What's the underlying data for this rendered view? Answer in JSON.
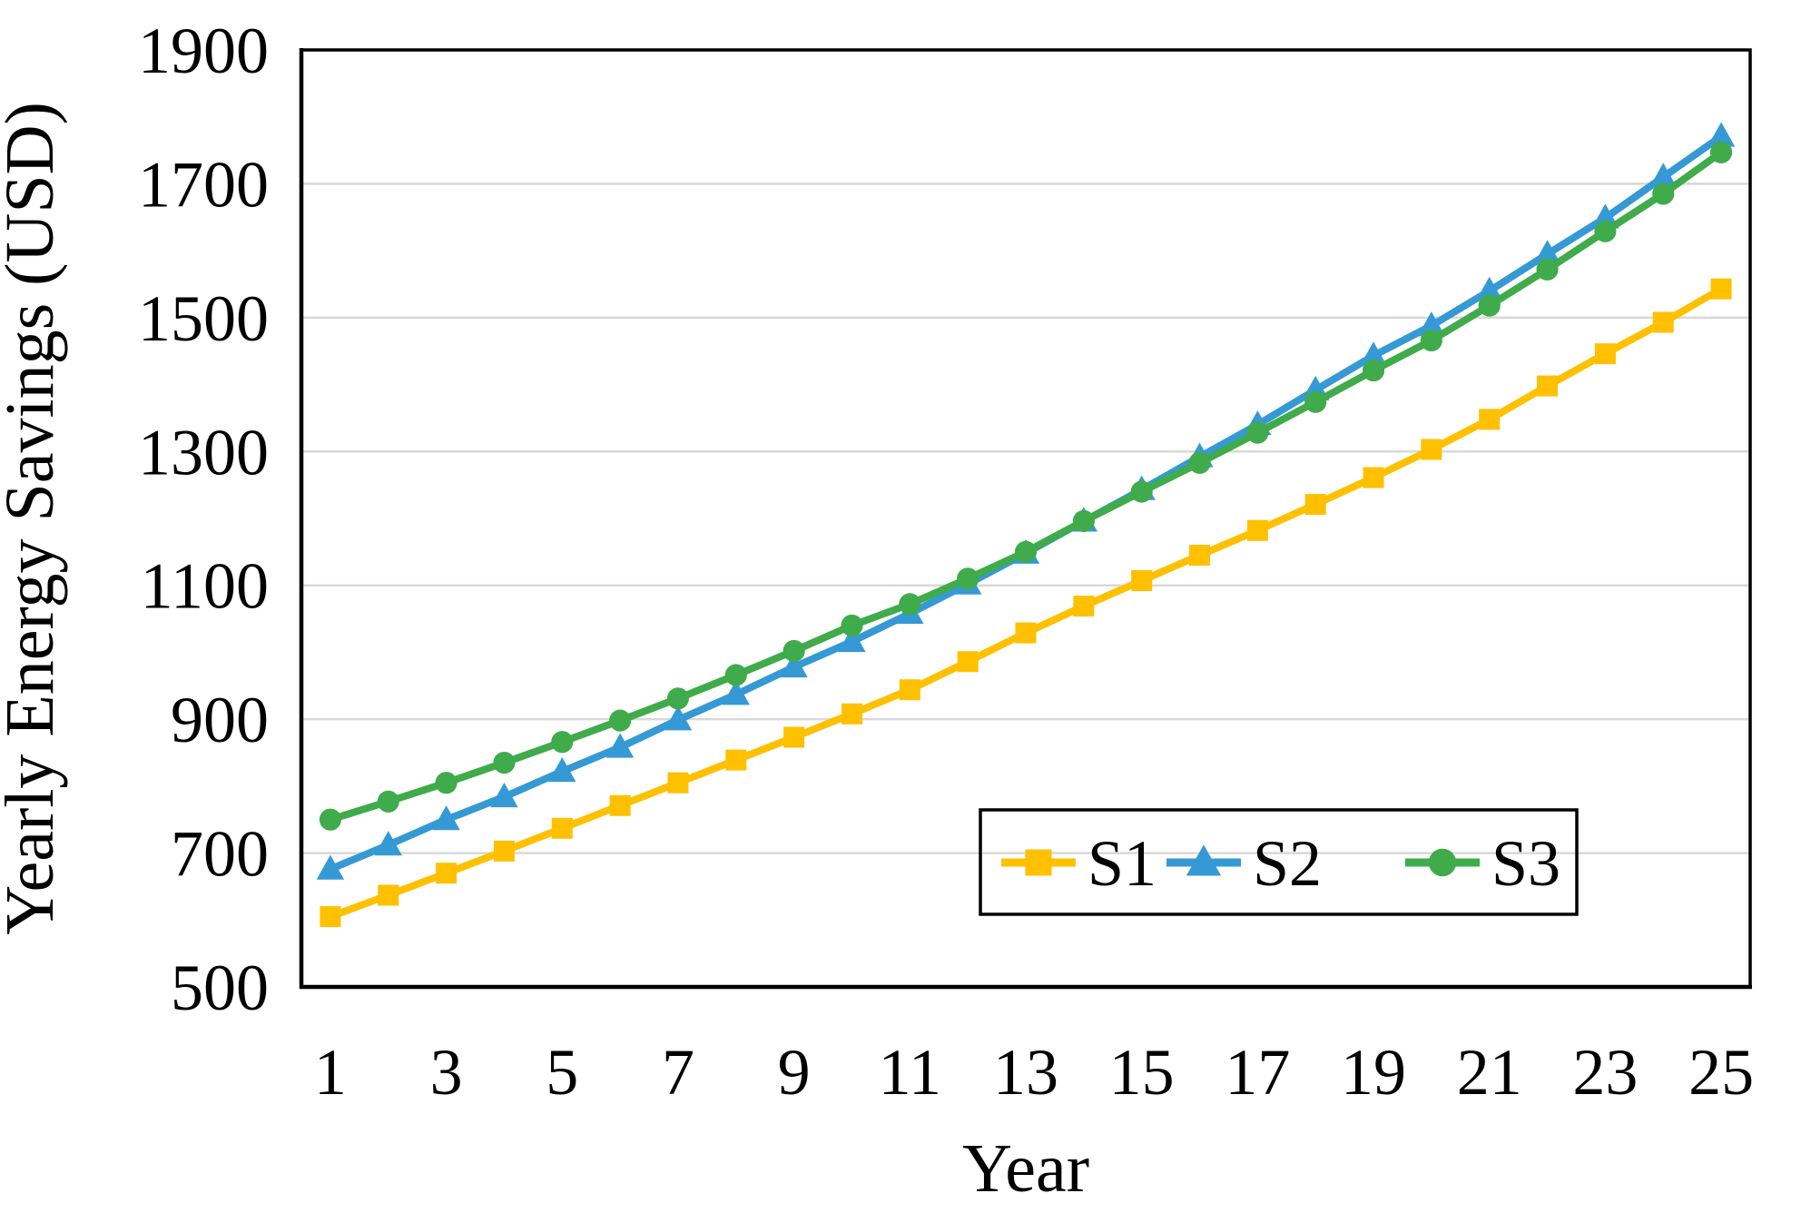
{
  "figure": {
    "background": "#ffffff",
    "y_axis": {
      "title": "Yearly Energy Savings (USD)",
      "tick_labels": [
        "500",
        "700",
        "900",
        "1100",
        "1300",
        "1500",
        "1700",
        "1900"
      ],
      "min": 500,
      "max": 1900
    },
    "x_axis": {
      "title": "Year",
      "tick_labels": [
        "1",
        "3",
        "5",
        "7",
        "9",
        "11",
        "13",
        "15",
        "17",
        "19",
        "21",
        "23",
        "25"
      ],
      "min": 1,
      "max": 25
    },
    "legend": {
      "entries": [
        "S1",
        "S2",
        "S3"
      ],
      "border_color": "#000000",
      "position": "inside-lower-right"
    }
  },
  "chart_data": {
    "type": "line",
    "title": "",
    "xlabel": "Year",
    "ylabel": "Yearly Energy Savings (USD)",
    "xlim": [
      1,
      25
    ],
    "ylim": [
      500,
      1900
    ],
    "yticks": [
      500,
      700,
      900,
      1100,
      1300,
      1500,
      1700,
      1900
    ],
    "xticks": [
      1,
      3,
      5,
      7,
      9,
      11,
      13,
      15,
      17,
      19,
      21,
      23,
      25
    ],
    "grid": true,
    "gridline_color": "#D8D8D8",
    "axis_color": "#000000",
    "legend_position": "inside lower right",
    "x": [
      1,
      2,
      3,
      4,
      5,
      6,
      7,
      8,
      9,
      10,
      11,
      12,
      13,
      14,
      15,
      16,
      17,
      18,
      19,
      20,
      21,
      22,
      23,
      24,
      25
    ],
    "series": [
      {
        "name": "S1",
        "color": "#FFC000",
        "marker": "square",
        "values": [
          605,
          637,
          670,
          703,
          737,
          771,
          805,
          839,
          873,
          908,
          944,
          986,
          1029,
          1069,
          1107,
          1145,
          1182,
          1221,
          1261,
          1303,
          1348,
          1398,
          1446,
          1493,
          1543
        ]
      },
      {
        "name": "S2",
        "color": "#3599D5",
        "marker": "triangle",
        "values": [
          676,
          712,
          750,
          784,
          822,
          858,
          899,
          937,
          978,
          1016,
          1058,
          1102,
          1148,
          1196,
          1243,
          1292,
          1340,
          1392,
          1443,
          1488,
          1540,
          1595,
          1649,
          1710,
          1771
        ]
      },
      {
        "name": "S3",
        "color": "#3FAB4A",
        "marker": "circle",
        "values": [
          750,
          777,
          805,
          835,
          866,
          898,
          931,
          966,
          1002,
          1040,
          1072,
          1110,
          1150,
          1196,
          1240,
          1283,
          1328,
          1374,
          1421,
          1466,
          1518,
          1572,
          1629,
          1685,
          1747
        ]
      }
    ]
  }
}
